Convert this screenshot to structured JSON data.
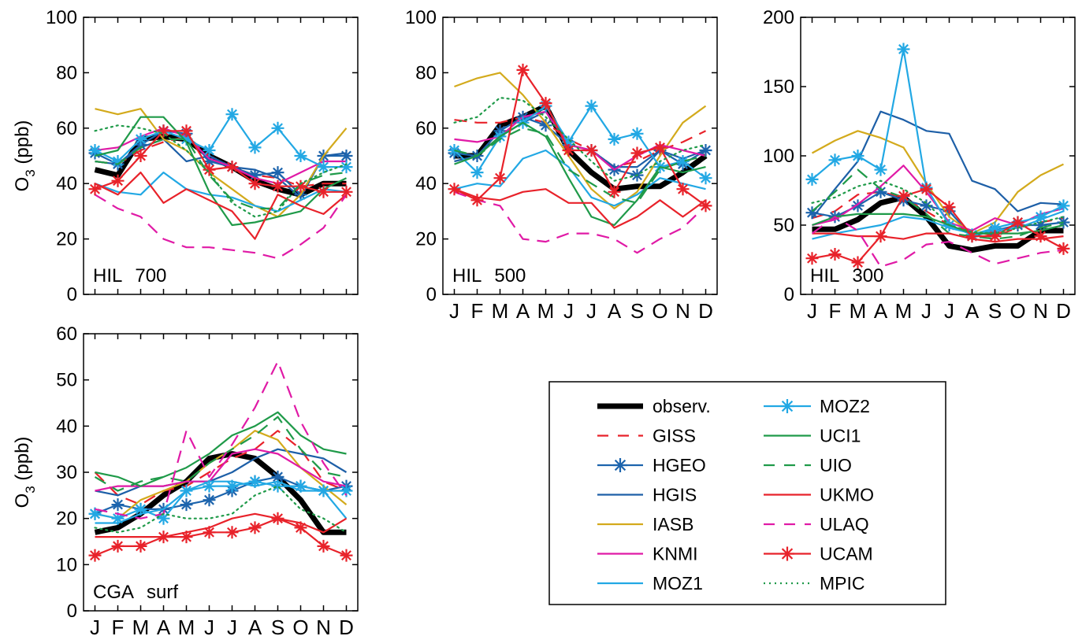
{
  "months": [
    "J",
    "F",
    "M",
    "A",
    "M",
    "J",
    "J",
    "A",
    "S",
    "O",
    "N",
    "D"
  ],
  "series_styles": [
    {
      "name": "observ.",
      "color": "#000000",
      "dash": "",
      "width": 7,
      "marker": false
    },
    {
      "name": "GISS",
      "color": "#e8222a",
      "dash": "16,10",
      "width": 2.2,
      "marker": false
    },
    {
      "name": "HGEO",
      "color": "#1c64ad",
      "dash": "",
      "width": 2.2,
      "marker": true
    },
    {
      "name": "HGIS",
      "color": "#1d5fa7",
      "dash": "",
      "width": 2.2,
      "marker": false
    },
    {
      "name": "IASB",
      "color": "#d3aa1c",
      "dash": "",
      "width": 2.2,
      "marker": false
    },
    {
      "name": "KNMI",
      "color": "#e01aa6",
      "dash": "",
      "width": 2.2,
      "marker": false
    },
    {
      "name": "MOZ1",
      "color": "#22a8e4",
      "dash": "",
      "width": 2.2,
      "marker": false
    },
    {
      "name": "MOZ2",
      "color": "#22a8e4",
      "dash": "",
      "width": 2.2,
      "marker": true
    },
    {
      "name": "UCI1",
      "color": "#1f9a49",
      "dash": "",
      "width": 2.2,
      "marker": false
    },
    {
      "name": "UIO",
      "color": "#1f9a49",
      "dash": "16,10",
      "width": 2.2,
      "marker": false
    },
    {
      "name": "UKMO",
      "color": "#e8222a",
      "dash": "",
      "width": 2.2,
      "marker": false
    },
    {
      "name": "ULAQ",
      "color": "#e01aa6",
      "dash": "16,10",
      "width": 2.2,
      "marker": false
    },
    {
      "name": "UCAM",
      "color": "#e8222a",
      "dash": "",
      "width": 2.2,
      "marker": true
    },
    {
      "name": "MPIC",
      "color": "#1f9a49",
      "dash": "2,5",
      "width": 2.2,
      "marker": false
    }
  ],
  "legend": {
    "col1": [
      "observ.",
      "GISS",
      "HGEO",
      "HGIS",
      "IASB",
      "KNMI",
      "MOZ1"
    ],
    "col2": [
      "MOZ2",
      "UCI1",
      "UIO",
      "UKMO",
      "ULAQ",
      "UCAM",
      "MPIC"
    ]
  },
  "chart_data": [
    {
      "type": "line",
      "panel": "HIL 700",
      "station": "HIL",
      "level": "700",
      "ylabel": "O3 (ppb)",
      "ylim": [
        0,
        100
      ],
      "yticks": [
        0,
        20,
        40,
        60,
        80,
        100
      ],
      "x_tick_labels": false,
      "series": [
        {
          "name": "observ.",
          "values": [
            45,
            43,
            56,
            57,
            56,
            50,
            46,
            41,
            38,
            36,
            40,
            40
          ]
        },
        {
          "name": "GISS",
          "values": [
            48,
            47,
            52,
            55,
            57,
            50,
            46,
            43,
            42,
            39,
            40,
            40
          ]
        },
        {
          "name": "HGEO",
          "values": [
            51,
            47,
            54,
            59,
            58,
            48,
            46,
            43,
            44,
            36,
            50,
            50
          ]
        },
        {
          "name": "HGIS",
          "values": [
            48,
            47,
            53,
            56,
            48,
            50,
            46,
            45,
            42,
            35,
            50,
            51
          ]
        },
        {
          "name": "IASB",
          "values": [
            67,
            65,
            67,
            56,
            52,
            44,
            38,
            32,
            28,
            36,
            50,
            60
          ]
        },
        {
          "name": "KNMI",
          "values": [
            52,
            53,
            57,
            60,
            57,
            49,
            46,
            42,
            40,
            44,
            48,
            48
          ]
        },
        {
          "name": "MOZ1",
          "values": [
            40,
            37,
            36,
            44,
            38,
            36,
            35,
            32,
            30,
            34,
            38,
            37
          ]
        },
        {
          "name": "MOZ2",
          "values": [
            52,
            48,
            56,
            59,
            56,
            52,
            65,
            53,
            60,
            50,
            46,
            46
          ]
        },
        {
          "name": "UCI1",
          "values": [
            50,
            52,
            64,
            64,
            55,
            37,
            25,
            26,
            28,
            30,
            38,
            42
          ]
        },
        {
          "name": "UIO",
          "values": [
            48,
            47,
            53,
            56,
            56,
            43,
            34,
            31,
            31,
            40,
            43,
            44
          ]
        },
        {
          "name": "UKMO",
          "values": [
            40,
            36,
            44,
            33,
            38,
            34,
            30,
            20,
            36,
            32,
            29,
            36
          ]
        },
        {
          "name": "ULAQ",
          "values": [
            36,
            31,
            28,
            20,
            17,
            17,
            16,
            15,
            13,
            18,
            24,
            36
          ]
        },
        {
          "name": "UCAM",
          "values": [
            38,
            41,
            50,
            59,
            59,
            45,
            46,
            40,
            39,
            39,
            37,
            37
          ]
        },
        {
          "name": "MPIC",
          "values": [
            59,
            61,
            60,
            58,
            52,
            44,
            33,
            28,
            30,
            40,
            44,
            47
          ]
        }
      ]
    },
    {
      "type": "line",
      "panel": "HIL 500",
      "station": "HIL",
      "level": "500",
      "ylabel": "",
      "ylim": [
        0,
        100
      ],
      "yticks": [
        0,
        20,
        40,
        60,
        80,
        100
      ],
      "x_tick_labels": true,
      "series": [
        {
          "name": "observ.",
          "values": [
            50,
            50,
            61,
            64,
            68,
            52,
            44,
            38,
            39,
            39,
            44,
            50
          ]
        },
        {
          "name": "GISS",
          "values": [
            63,
            62,
            62,
            64,
            62,
            56,
            52,
            46,
            48,
            52,
            55,
            59
          ]
        },
        {
          "name": "HGEO",
          "values": [
            51,
            50,
            59,
            64,
            61,
            54,
            52,
            45,
            43,
            52,
            47,
            52
          ]
        },
        {
          "name": "HGIS",
          "values": [
            48,
            50,
            57,
            62,
            66,
            54,
            52,
            46,
            46,
            52,
            49,
            52
          ]
        },
        {
          "name": "IASB",
          "values": [
            75,
            78,
            80,
            72,
            62,
            50,
            38,
            31,
            37,
            50,
            62,
            68
          ]
        },
        {
          "name": "KNMI",
          "values": [
            56,
            55,
            57,
            64,
            66,
            54,
            52,
            45,
            50,
            54,
            52,
            50
          ]
        },
        {
          "name": "MOZ1",
          "values": [
            38,
            40,
            39,
            49,
            52,
            46,
            35,
            32,
            36,
            42,
            40,
            38
          ]
        },
        {
          "name": "MOZ2",
          "values": [
            52,
            44,
            57,
            62,
            68,
            55,
            68,
            56,
            58,
            46,
            48,
            42
          ]
        },
        {
          "name": "UCI1",
          "values": [
            47,
            50,
            57,
            62,
            57,
            42,
            28,
            25,
            34,
            46,
            44,
            46
          ]
        },
        {
          "name": "UIO",
          "values": [
            52,
            50,
            56,
            60,
            58,
            45,
            40,
            35,
            33,
            45,
            48,
            50
          ]
        },
        {
          "name": "UKMO",
          "values": [
            38,
            35,
            34,
            37,
            38,
            33,
            33,
            24,
            28,
            34,
            28,
            34
          ]
        },
        {
          "name": "ULAQ",
          "values": [
            37,
            34,
            32,
            20,
            19,
            22,
            22,
            20,
            15,
            20,
            24,
            32
          ]
        },
        {
          "name": "UCAM",
          "values": [
            38,
            34,
            42,
            81,
            69,
            52,
            52,
            37,
            51,
            53,
            38,
            32
          ]
        },
        {
          "name": "MPIC",
          "values": [
            62,
            64,
            71,
            70,
            64,
            56,
            48,
            41,
            43,
            48,
            52,
            54
          ]
        }
      ]
    },
    {
      "type": "line",
      "panel": "HIL 300",
      "station": "HIL",
      "level": "300",
      "ylabel": "",
      "ylim": [
        0,
        200
      ],
      "yticks": [
        0,
        50,
        100,
        150,
        200
      ],
      "x_tick_labels": true,
      "series": [
        {
          "name": "observ.",
          "values": [
            47,
            47,
            54,
            66,
            70,
            56,
            35,
            32,
            35,
            35,
            46,
            46
          ]
        },
        {
          "name": "GISS",
          "values": [
            55,
            60,
            72,
            74,
            70,
            60,
            50,
            46,
            42,
            48,
            52,
            55
          ]
        },
        {
          "name": "HGEO",
          "values": [
            59,
            56,
            64,
            74,
            68,
            64,
            60,
            42,
            46,
            50,
            50,
            52
          ]
        },
        {
          "name": "HGIS",
          "values": [
            55,
            76,
            96,
            132,
            126,
            118,
            116,
            82,
            76,
            60,
            66,
            65
          ]
        },
        {
          "name": "IASB",
          "values": [
            102,
            111,
            118,
            113,
            106,
            80,
            56,
            44,
            52,
            74,
            86,
            94
          ]
        },
        {
          "name": "KNMI",
          "values": [
            50,
            54,
            65,
            78,
            93,
            74,
            52,
            46,
            55,
            50,
            58,
            62
          ]
        },
        {
          "name": "MOZ1",
          "values": [
            40,
            44,
            47,
            50,
            56,
            54,
            48,
            44,
            46,
            48,
            54,
            60
          ]
        },
        {
          "name": "MOZ2",
          "values": [
            83,
            97,
            100,
            90,
            177,
            77,
            50,
            43,
            48,
            52,
            56,
            64
          ]
        },
        {
          "name": "UCI1",
          "values": [
            50,
            56,
            58,
            58,
            58,
            56,
            50,
            44,
            44,
            44,
            46,
            50
          ]
        },
        {
          "name": "UIO",
          "values": [
            60,
            74,
            90,
            76,
            70,
            58,
            44,
            42,
            40,
            42,
            48,
            52
          ]
        },
        {
          "name": "UKMO",
          "values": [
            44,
            44,
            42,
            42,
            40,
            44,
            44,
            40,
            38,
            40,
            40,
            42
          ]
        },
        {
          "name": "ULAQ",
          "values": [
            44,
            56,
            46,
            20,
            25,
            36,
            38,
            30,
            22,
            26,
            30,
            32
          ]
        },
        {
          "name": "UCAM",
          "values": [
            26,
            29,
            23,
            42,
            71,
            76,
            63,
            42,
            42,
            52,
            42,
            33
          ]
        },
        {
          "name": "MPIC",
          "values": [
            66,
            70,
            78,
            82,
            76,
            66,
            50,
            45,
            44,
            48,
            52,
            56
          ]
        }
      ]
    },
    {
      "type": "line",
      "panel": "CGA surf",
      "station": "CGA",
      "level": "surf",
      "ylabel": "O3 (ppb)",
      "ylim": [
        0,
        60
      ],
      "yticks": [
        0,
        10,
        20,
        30,
        40,
        50,
        60
      ],
      "x_tick_labels": true,
      "series": [
        {
          "name": "observ.",
          "values": [
            17,
            18,
            21,
            25,
            28,
            33,
            34,
            33,
            29,
            24,
            17,
            17
          ]
        },
        {
          "name": "GISS",
          "values": [
            30,
            25,
            23,
            26,
            27,
            30,
            33,
            35,
            39,
            35,
            28,
            26
          ]
        },
        {
          "name": "HGEO",
          "values": [
            21,
            23,
            22,
            22,
            23,
            24,
            26,
            28,
            29,
            27,
            26,
            27
          ]
        },
        {
          "name": "HGIS",
          "values": [
            26,
            25,
            27,
            27,
            28,
            28,
            30,
            33,
            35,
            34,
            33,
            30
          ]
        },
        {
          "name": "IASB",
          "values": [
            21,
            20,
            24,
            26,
            28,
            32,
            35,
            39,
            37,
            31,
            27,
            23
          ]
        },
        {
          "name": "KNMI",
          "values": [
            26,
            27,
            27,
            27,
            28,
            28,
            34,
            35,
            34,
            31,
            28,
            27
          ]
        },
        {
          "name": "MOZ1",
          "values": [
            19,
            19,
            21,
            22,
            26,
            28,
            28,
            27,
            28,
            26,
            26,
            20
          ]
        },
        {
          "name": "MOZ2",
          "values": [
            21,
            20,
            22,
            20,
            26,
            27,
            27,
            28,
            27,
            27,
            26,
            26
          ]
        },
        {
          "name": "UCI1",
          "values": [
            30,
            29,
            27,
            29,
            31,
            34,
            38,
            40,
            43,
            38,
            35,
            34
          ]
        },
        {
          "name": "UIO",
          "values": [
            29,
            26,
            28,
            29,
            28,
            32,
            35,
            38,
            42,
            35,
            30,
            29
          ]
        },
        {
          "name": "UKMO",
          "values": [
            16,
            16,
            16,
            16,
            17,
            18,
            20,
            21,
            20,
            19,
            17,
            20
          ]
        },
        {
          "name": "ULAQ",
          "values": [
            22,
            21,
            20,
            21,
            39,
            29,
            36,
            44,
            54,
            41,
            32,
            25
          ]
        },
        {
          "name": "UCAM",
          "values": [
            12,
            14,
            14,
            16,
            16,
            17,
            17,
            18,
            20,
            18,
            14,
            12
          ]
        },
        {
          "name": "MPIC",
          "values": [
            18,
            17,
            18,
            21,
            20,
            20,
            21,
            25,
            27,
            22,
            20,
            17
          ]
        }
      ]
    }
  ]
}
